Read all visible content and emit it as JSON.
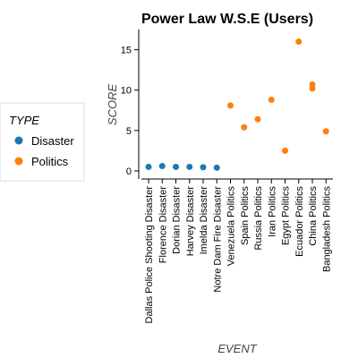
{
  "chart_data": {
    "type": "scatter",
    "title": "Power Law W.S.E (Users)",
    "xlabel": "EVENT",
    "ylabel": "SCORE",
    "ylim": [
      -1,
      17.5
    ],
    "yticks": [
      0,
      5,
      10,
      15
    ],
    "grid": false,
    "legend": {
      "title": "TYPE",
      "position": "left"
    },
    "categories": [
      "Dallas Police Shooting Disaster",
      "Florence Disaster",
      "Dorian Disaster",
      "Harvey Disaster",
      "Imelda Disaster",
      "Notre Dam Fire Disaster",
      "Venezuela Politics",
      "Spain Politics",
      "Russia Politics",
      "Iran Politics",
      "Egypt Politics",
      "Ecuador Politics",
      "China Politics",
      "Bangladesh Politics"
    ],
    "series": [
      {
        "name": "Disaster",
        "color": "#1f77b4",
        "points": [
          {
            "x": "Dallas Police Shooting Disaster",
            "y": 0.5
          },
          {
            "x": "Florence Disaster",
            "y": 0.6
          },
          {
            "x": "Dorian Disaster",
            "y": 0.5
          },
          {
            "x": "Harvey Disaster",
            "y": 0.5
          },
          {
            "x": "Imelda Disaster",
            "y": 0.45
          },
          {
            "x": "Notre Dam Fire Disaster",
            "y": 0.4
          }
        ]
      },
      {
        "name": "Politics",
        "color": "#ff7f0e",
        "points": [
          {
            "x": "Venezuela Politics",
            "y": 8.1
          },
          {
            "x": "Spain Politics",
            "y": 5.4
          },
          {
            "x": "Russia Politics",
            "y": 6.4
          },
          {
            "x": "Iran Politics",
            "y": 8.8
          },
          {
            "x": "Egypt Politics",
            "y": 2.5
          },
          {
            "x": "Ecuador Politics",
            "y": 16.0
          },
          {
            "x": "China Politics",
            "y": 10.7
          },
          {
            "x": "China Politics",
            "y": 10.2
          },
          {
            "x": "Bangladesh Politics",
            "y": 4.9
          }
        ]
      }
    ]
  }
}
